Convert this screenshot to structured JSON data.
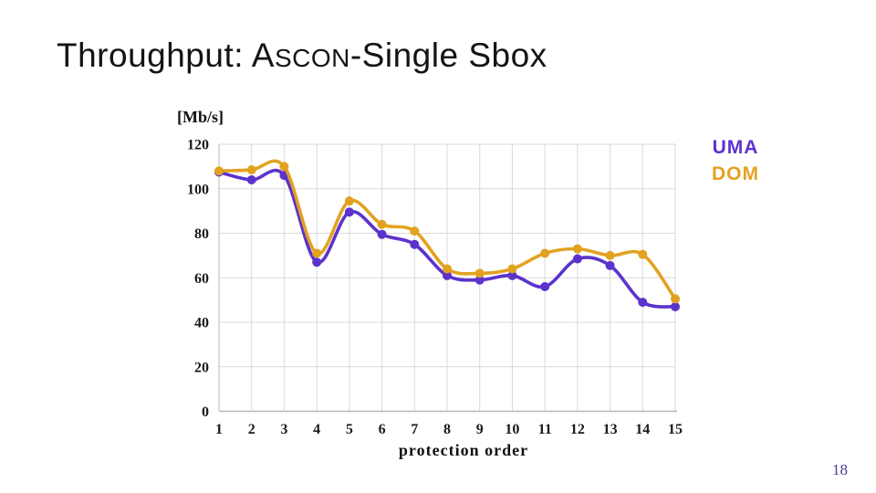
{
  "slide": {
    "title": {
      "prefix": "Throughput: ",
      "ascon_initial": "A",
      "ascon_rest": "SCON",
      "suffix": "-Single Sbox"
    },
    "page_number": "18"
  },
  "chart_data": {
    "type": "line",
    "title": "",
    "xlabel": "protection order",
    "ylabel": "[Mb/s]",
    "x": [
      1,
      2,
      3,
      4,
      5,
      6,
      7,
      8,
      9,
      10,
      11,
      12,
      13,
      14,
      15
    ],
    "ylim": [
      0,
      120
    ],
    "yticks": [
      0,
      20,
      40,
      60,
      80,
      100,
      120
    ],
    "grid": true,
    "smoothed": true,
    "legend_position": "top-right",
    "series": [
      {
        "name": "UMA",
        "color": "#5b33cc",
        "values": [
          107.5,
          104,
          106,
          67,
          89.5,
          79.5,
          75,
          61,
          59,
          61,
          56,
          68.5,
          65.5,
          49,
          47
        ]
      },
      {
        "name": "DOM",
        "color": "#e2a220",
        "values": [
          108,
          108.5,
          110,
          71,
          94.5,
          84,
          81,
          64,
          62,
          64,
          71,
          73,
          70,
          70.5,
          50.5
        ]
      }
    ],
    "colors": {
      "gridline": "#d9d9d9",
      "axis_line": "#b8b8b8",
      "tick_text": "#1a1a1a"
    }
  }
}
